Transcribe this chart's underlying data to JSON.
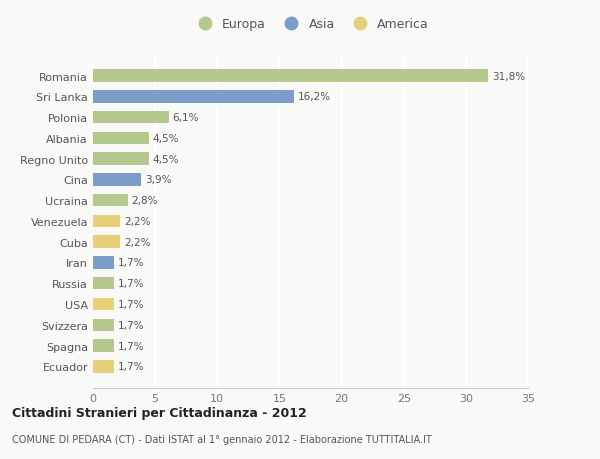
{
  "categories": [
    "Romania",
    "Sri Lanka",
    "Polonia",
    "Albania",
    "Regno Unito",
    "Cina",
    "Ucraina",
    "Venezuela",
    "Cuba",
    "Iran",
    "Russia",
    "USA",
    "Svizzera",
    "Spagna",
    "Ecuador"
  ],
  "values": [
    31.8,
    16.2,
    6.1,
    4.5,
    4.5,
    3.9,
    2.8,
    2.2,
    2.2,
    1.7,
    1.7,
    1.7,
    1.7,
    1.7,
    1.7
  ],
  "labels": [
    "31,8%",
    "16,2%",
    "6,1%",
    "4,5%",
    "4,5%",
    "3,9%",
    "2,8%",
    "2,2%",
    "2,2%",
    "1,7%",
    "1,7%",
    "1,7%",
    "1,7%",
    "1,7%",
    "1,7%"
  ],
  "continents": [
    "Europa",
    "Asia",
    "Europa",
    "Europa",
    "Europa",
    "Asia",
    "Europa",
    "America",
    "America",
    "Asia",
    "Europa",
    "America",
    "Europa",
    "Europa",
    "America"
  ],
  "colors": {
    "Europa": "#b5c98e",
    "Asia": "#7b9ec9",
    "America": "#e8d07a"
  },
  "legend_colors": {
    "Europa": "#b5c98e",
    "Asia": "#7b9ec9",
    "America": "#e8d07a"
  },
  "xlim": [
    0,
    35
  ],
  "xticks": [
    0,
    5,
    10,
    15,
    20,
    25,
    30,
    35
  ],
  "title": "Cittadini Stranieri per Cittadinanza - 2012",
  "subtitle": "COMUNE DI PEDARA (CT) - Dati ISTAT al 1° gennaio 2012 - Elaborazione TUTTITALIA.IT",
  "background_color": "#f9f9f7",
  "grid_color": "#ffffff",
  "bar_height": 0.6
}
